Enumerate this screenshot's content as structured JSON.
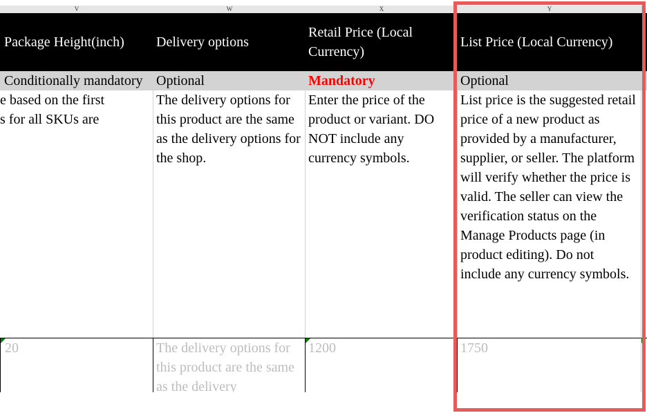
{
  "column_letters": [
    "V",
    "W",
    "X",
    "Y"
  ],
  "columns": [
    {
      "header": "Package Height(inch)",
      "requirement": "Conditionally mandatory",
      "description": "e based on the first\ns for all SKUs are",
      "example": "20"
    },
    {
      "header": "Delivery options",
      "requirement": "Optional",
      "description": "The delivery options for this product are the same as the delivery options for the shop.",
      "example": "The delivery options for this product are the same as the delivery"
    },
    {
      "header": "Retail Price (Local Currency)",
      "requirement": "Mandatory",
      "description": "Enter the price of the product or variant. DO NOT include any currency symbols.",
      "example": "1200"
    },
    {
      "header": "List Price (Local Currency)",
      "requirement": "Optional",
      "description": "List price is the suggested retail price of a new product as provided by a manufacturer, supplier, or seller. The platform will verify whether the price is valid. The seller can view the verification status on the Manage Products page (in product editing). Do not include any currency symbols.",
      "example": "1750"
    }
  ],
  "colors": {
    "header_bg": "#000000",
    "requirement_bg": "#d3d3d3",
    "mandatory": "#ff0000",
    "highlight": "#e55b5b",
    "example_text": "#bdbdbd"
  }
}
